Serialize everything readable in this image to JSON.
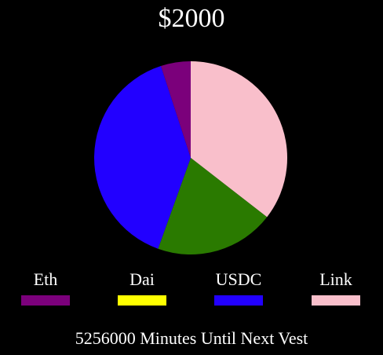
{
  "chart_data": {
    "type": "pie",
    "title": "$2000",
    "slices": [
      {
        "label": "Link",
        "value": 35.5,
        "color": "#f9bfcb"
      },
      {
        "label": "USDC",
        "value": 39.5,
        "color": "#2200ff"
      },
      {
        "label": "Dai",
        "value": 0,
        "color": "#ffff00"
      },
      {
        "label": "Eth",
        "value": 5,
        "color": "#7b007b"
      }
    ],
    "extra_slice": {
      "value": 20,
      "color": "#2a7a00"
    },
    "legend_placement": "bottom",
    "legend": [
      {
        "label": "Eth",
        "color": "#7b007b"
      },
      {
        "label": "Dai",
        "color": "#ffff00"
      },
      {
        "label": "USDC",
        "color": "#2200ff"
      },
      {
        "label": "Link",
        "color": "#f9bfcb"
      }
    ]
  },
  "footer_text": "5256000 Minutes Until Next Vest"
}
